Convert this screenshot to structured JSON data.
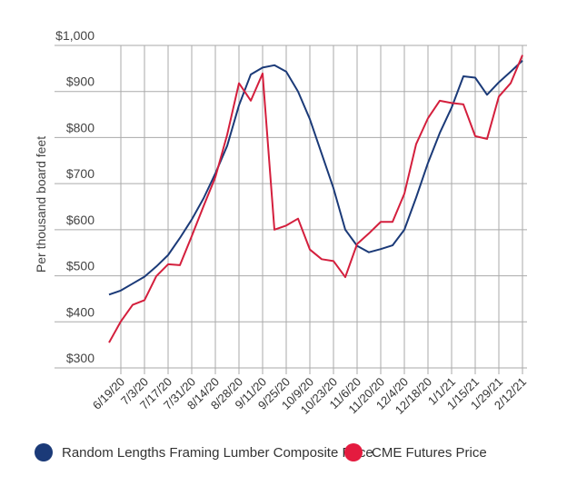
{
  "chart_data": {
    "type": "line",
    "title": "",
    "xlabel": "",
    "ylabel": "Per thousand board feet",
    "ylim": [
      300,
      1000
    ],
    "yticks": [
      "$300",
      "$400",
      "$500",
      "$600",
      "$700",
      "$800",
      "$900",
      "$1,000"
    ],
    "ytick_values": [
      300,
      400,
      500,
      600,
      700,
      800,
      900,
      1000
    ],
    "xtick_labels": [
      "6/19/20",
      "7/3/20",
      "7/17/20",
      "7/31/20",
      "8/14/20",
      "8/28/20",
      "9/11/20",
      "9/25/20",
      "10/9/20",
      "10/23/20",
      "11/6/20",
      "11/20/20",
      "12/4/20",
      "12/18/20",
      "1/1/21",
      "1/15/21",
      "1/29/21",
      "2/12/21"
    ],
    "x": [
      "6/12/20",
      "6/19/20",
      "6/26/20",
      "7/3/20",
      "7/10/20",
      "7/17/20",
      "7/24/20",
      "7/31/20",
      "8/7/20",
      "8/14/20",
      "8/21/20",
      "8/28/20",
      "9/4/20",
      "9/11/20",
      "9/18/20",
      "9/25/20",
      "10/2/20",
      "10/9/20",
      "10/16/20",
      "10/23/20",
      "10/30/20",
      "11/6/20",
      "11/13/20",
      "11/20/20",
      "11/27/20",
      "12/4/20",
      "12/11/20",
      "12/18/20",
      "12/25/20",
      "1/1/21",
      "1/8/21",
      "1/15/21",
      "1/22/21",
      "1/29/21",
      "2/5/21",
      "2/12/21"
    ],
    "grid": true,
    "legend_position": "bottom",
    "series": [
      {
        "name": "Random Lengths Framing Lumber Composite Price",
        "color": "#1b3a78",
        "values": [
          459,
          468,
          483,
          498,
          520,
          545,
          582,
          622,
          668,
          722,
          782,
          870,
          937,
          952,
          957,
          943,
          900,
          840,
          765,
          690,
          600,
          565,
          551,
          558,
          566,
          600,
          670,
          745,
          810,
          865,
          933,
          930,
          893,
          920,
          943,
          967
        ]
      },
      {
        "name": "CME Futures Price",
        "color": "#d41f3d",
        "values": [
          355,
          401,
          437,
          447,
          499,
          525,
          523,
          586,
          651,
          714,
          806,
          918,
          880,
          939,
          600,
          609,
          624,
          557,
          536,
          532,
          497,
          569,
          592,
          617,
          617,
          678,
          786,
          842,
          880,
          875,
          872,
          803,
          797,
          889,
          918,
          979
        ]
      }
    ]
  }
}
